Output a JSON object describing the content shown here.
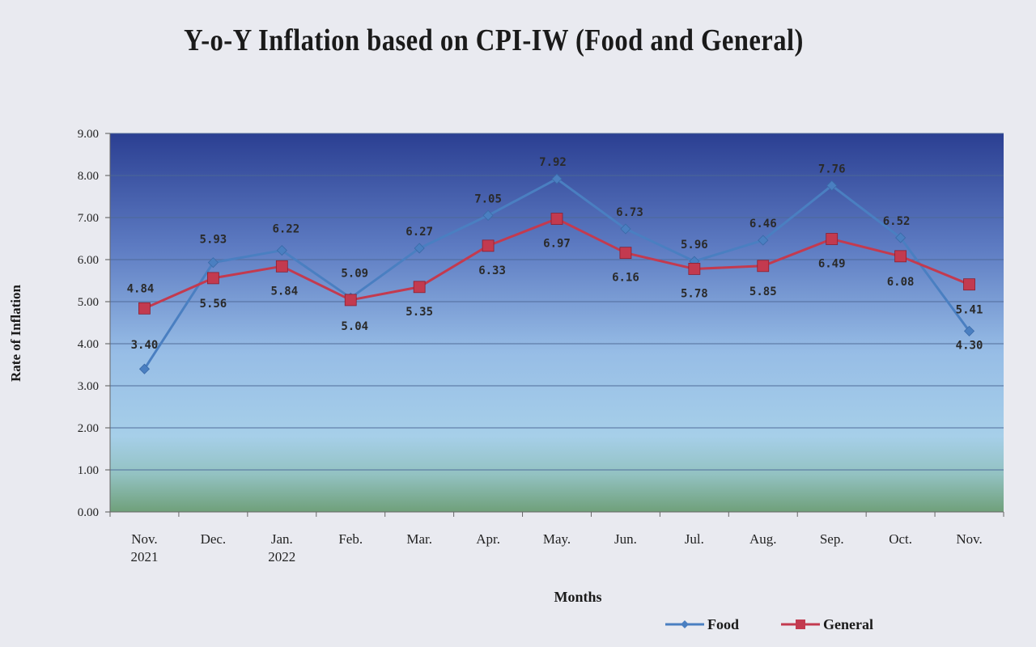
{
  "chart_data": {
    "type": "line",
    "title": "Y-o-Y Inflation based on CPI-IW (Food and General)",
    "xlabel": "Months",
    "ylabel": "Rate of Inflation",
    "ylim": [
      0,
      9
    ],
    "yticks": [
      "0.00",
      "1.00",
      "2.00",
      "3.00",
      "4.00",
      "5.00",
      "6.00",
      "7.00",
      "8.00",
      "9.00"
    ],
    "grid": true,
    "legend_position": "bottom-right",
    "categories": [
      [
        "Nov.",
        "2021"
      ],
      [
        "Dec."
      ],
      [
        "Jan.",
        "2022"
      ],
      [
        "Feb."
      ],
      [
        "Mar."
      ],
      [
        "Apr."
      ],
      [
        "May."
      ],
      [
        "Jun."
      ],
      [
        "Jul."
      ],
      [
        "Aug."
      ],
      [
        "Sep."
      ],
      [
        "Oct."
      ],
      [
        "Nov."
      ]
    ],
    "series": [
      {
        "name": "Food",
        "color": "#4a7fc1",
        "marker": "diamond",
        "values": [
          3.4,
          5.93,
          6.22,
          5.09,
          6.27,
          7.05,
          7.92,
          6.73,
          5.96,
          6.46,
          7.76,
          6.52,
          4.3
        ],
        "labels": [
          "3.40",
          "5.93",
          "6.22",
          "5.09",
          "6.27",
          "7.05",
          "7.92",
          "6.73",
          "5.96",
          "6.46",
          "7.76",
          "6.52",
          "4.30"
        ]
      },
      {
        "name": "General",
        "color": "#c33a4f",
        "marker": "square",
        "values": [
          4.84,
          5.56,
          5.84,
          5.04,
          5.35,
          6.33,
          6.97,
          6.16,
          5.78,
          5.85,
          6.49,
          6.08,
          5.41
        ],
        "labels": [
          "4.84",
          "5.56",
          "5.84",
          "5.04",
          "5.35",
          "6.33",
          "6.97",
          "6.16",
          "5.78",
          "5.85",
          "6.49",
          "6.08",
          "5.41"
        ]
      }
    ]
  }
}
